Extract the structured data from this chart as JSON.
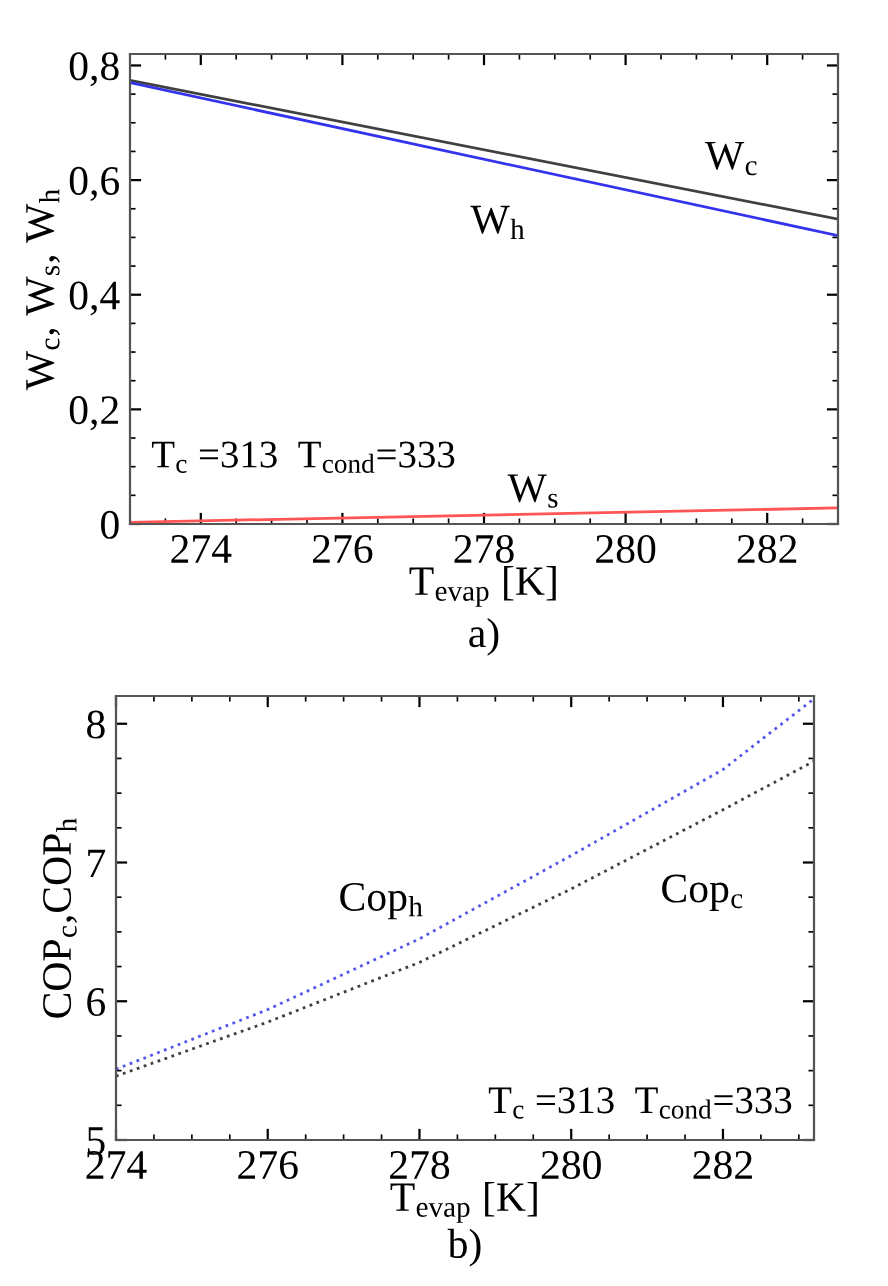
{
  "chart_data": [
    {
      "type": "line",
      "title": "a)",
      "xlabel": "T$_{evap}$ [K]",
      "ylabel": "W$_{c}$, W$_{s}$, W$_{h}$",
      "x": [
        273,
        283
      ],
      "xlim": [
        273,
        283
      ],
      "ylim": [
        0,
        0.82
      ],
      "xticks": [
        274,
        276,
        278,
        280,
        282
      ],
      "yticks": [
        {
          "value": 0,
          "label": "0"
        },
        {
          "value": 0.2,
          "label": "0,2"
        },
        {
          "value": 0.4,
          "label": "0,4"
        },
        {
          "value": 0.6,
          "label": "0,6"
        },
        {
          "value": 0.8,
          "label": "0,8"
        }
      ],
      "series": [
        {
          "name": "W$_{c}$",
          "color": "#404040",
          "values": [
            0.774,
            0.532
          ]
        },
        {
          "name": "W$_{h}$",
          "color": "#3333ee",
          "values": [
            0.77,
            0.503
          ]
        },
        {
          "name": "W$_{s}$",
          "color": "#ff5555",
          "values": [
            0.003,
            0.028
          ]
        }
      ],
      "annotations": [
        "T$_{c}$ =313  T$_{cond}$=333"
      ]
    },
    {
      "type": "line",
      "title": "b)",
      "xlabel": "T$_{evap}$ [K]",
      "ylabel": "COP$_{c}$,COP$_{h}$",
      "x": [
        274,
        276,
        278,
        280,
        282,
        283.2
      ],
      "xlim": [
        274,
        283.2
      ],
      "ylim": [
        5,
        8.2
      ],
      "xticks": [
        274,
        276,
        278,
        280,
        282
      ],
      "yticks": [
        5,
        6,
        7,
        8
      ],
      "series": [
        {
          "name": "Cop$_{h}$",
          "color": "#5555ee",
          "values": [
            5.51,
            5.94,
            6.45,
            7.05,
            7.67,
            8.18
          ],
          "line_style": "dotted"
        },
        {
          "name": "Cop$_{c}$",
          "color": "#404040",
          "values": [
            5.46,
            5.85,
            6.28,
            6.81,
            7.38,
            7.73
          ],
          "line_style": "dotted"
        }
      ],
      "annotations": [
        "T$_{c}$ =313  T$_{cond}$=333"
      ]
    }
  ]
}
